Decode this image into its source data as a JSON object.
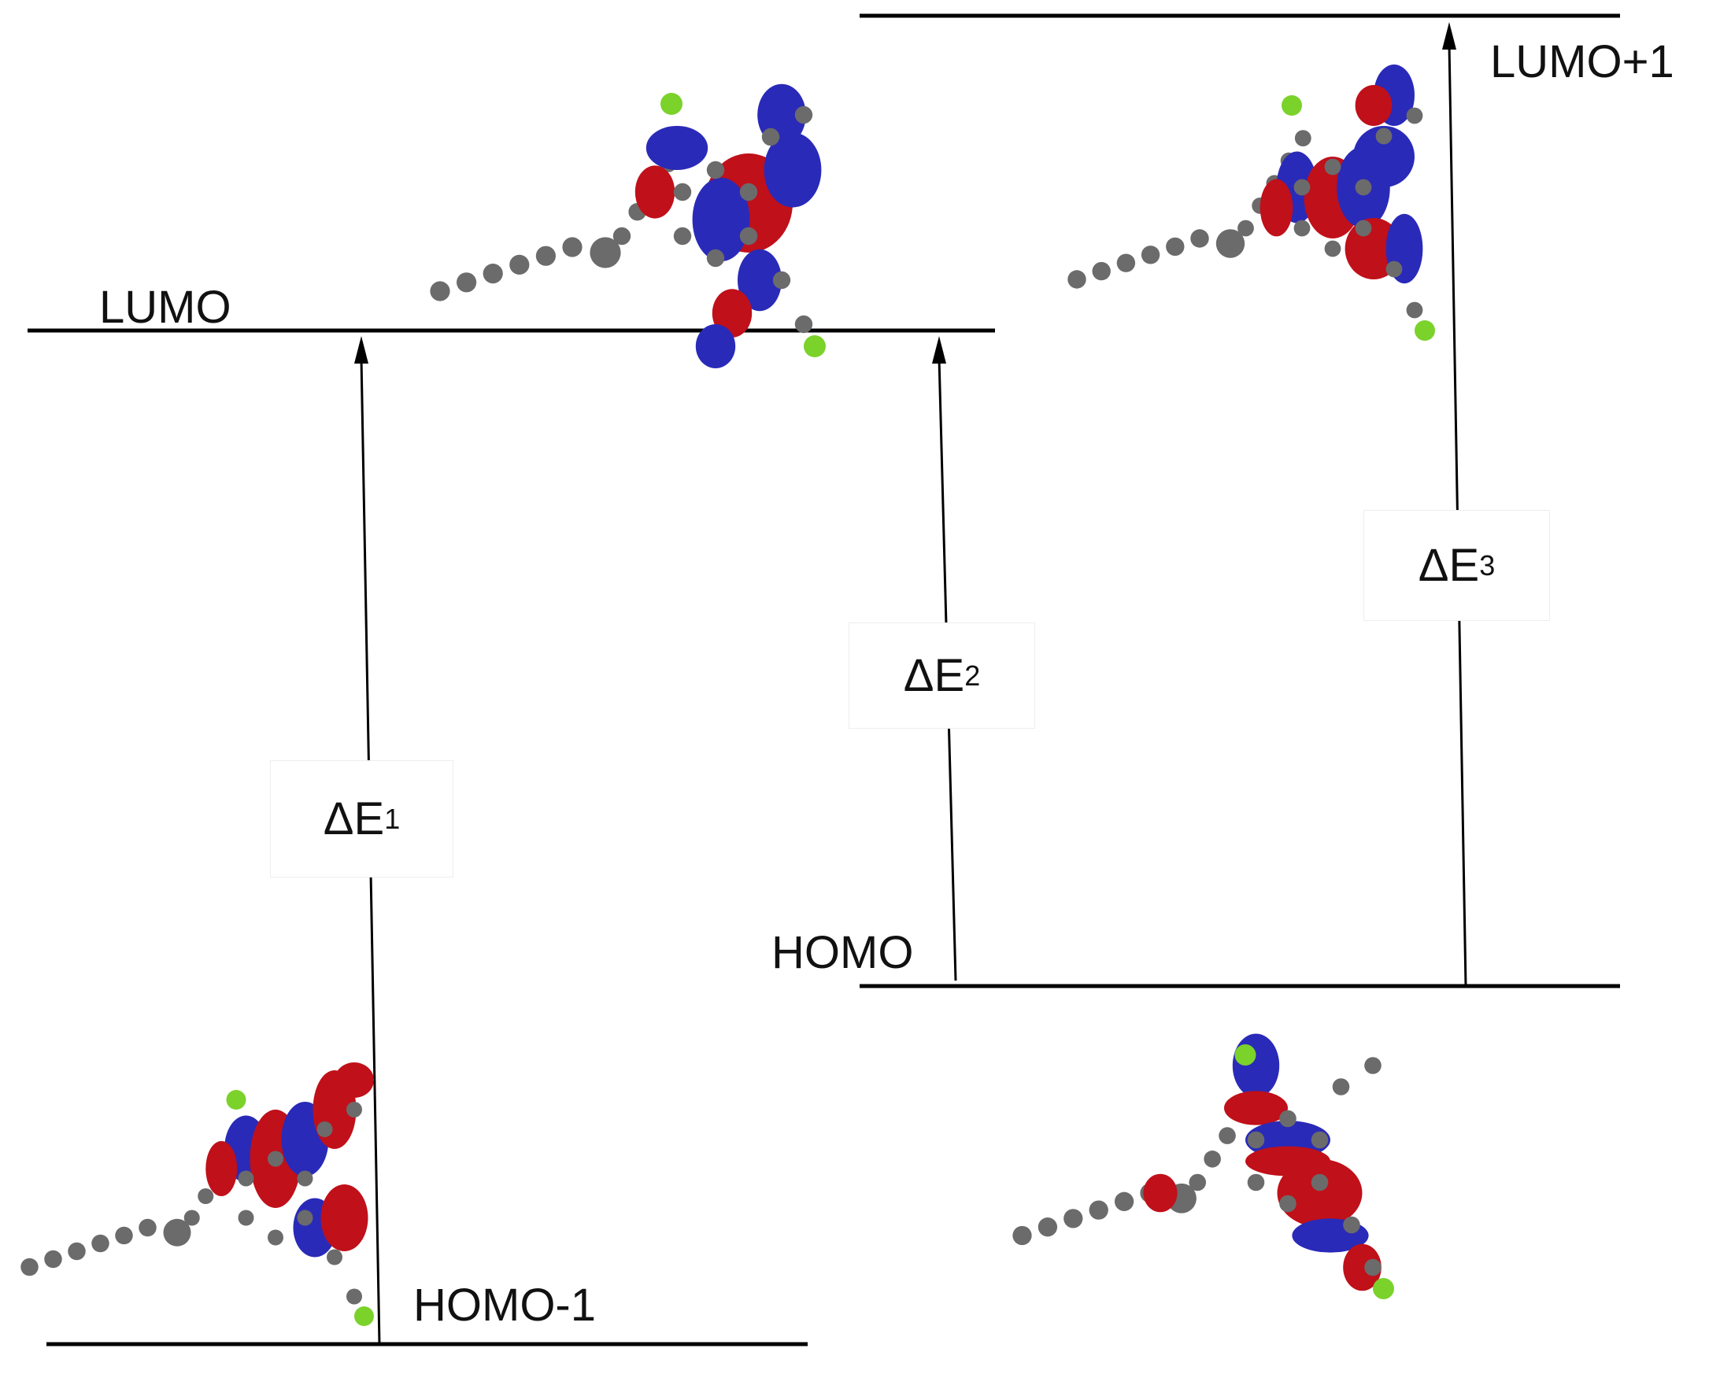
{
  "levels": {
    "lumo_plus_1": "LUMO+1",
    "lumo": "LUMO",
    "homo": "HOMO",
    "homo_minus_1": "HOMO-1"
  },
  "transitions": [
    {
      "symbol": "ΔE",
      "index": "1",
      "from": "HOMO-1",
      "to": "LUMO"
    },
    {
      "symbol": "ΔE",
      "index": "2",
      "from": "HOMO",
      "to": "LUMO"
    },
    {
      "symbol": "ΔE",
      "index": "3",
      "from": "HOMO",
      "to": "LUMO+1"
    }
  ],
  "colors": {
    "positive_lobe": "#c0101a",
    "negative_lobe": "#2a2ab8",
    "carbon": "#6b6b6b",
    "halogen": "#7bd22a",
    "line": "#000000"
  }
}
